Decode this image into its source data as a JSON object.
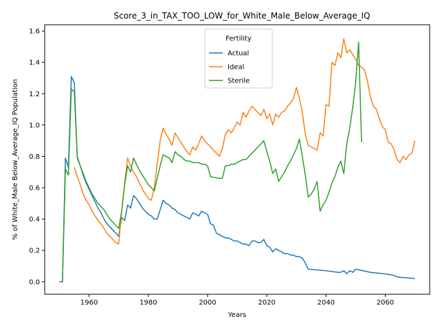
{
  "chart_data": {
    "type": "line",
    "title": "Score_3_in_TAX_TOO_LOW_for_White_Male_Below_Average_IQ",
    "xlabel": "Years",
    "ylabel": "% of White_Male Below_Average_IQ Population",
    "xlim": [
      1945,
      2075
    ],
    "ylim": [
      -0.08,
      1.64
    ],
    "xticks": [
      1960,
      1980,
      2000,
      2020,
      2040,
      2060
    ],
    "yticks": [
      0.0,
      0.2,
      0.4,
      0.6,
      0.8,
      1.0,
      1.2,
      1.4,
      1.6
    ],
    "grid": false,
    "legend": {
      "title": "Fertility",
      "placement": "upper-center"
    },
    "series": [
      {
        "name": "Actual",
        "color": "#1f77b4",
        "points": [
          [
            1950,
            0.0
          ],
          [
            1951,
            0.0
          ],
          [
            1952,
            0.79
          ],
          [
            1953,
            0.73
          ],
          [
            1954,
            1.31
          ],
          [
            1955,
            1.27
          ],
          [
            1956,
            0.79
          ],
          [
            1957,
            0.74
          ],
          [
            1958,
            0.68
          ],
          [
            1959,
            0.63
          ],
          [
            1960,
            0.59
          ],
          [
            1961,
            0.55
          ],
          [
            1962,
            0.51
          ],
          [
            1963,
            0.47
          ],
          [
            1964,
            0.44
          ],
          [
            1965,
            0.4
          ],
          [
            1966,
            0.37
          ],
          [
            1967,
            0.35
          ],
          [
            1968,
            0.33
          ],
          [
            1969,
            0.31
          ],
          [
            1970,
            0.29
          ],
          [
            1971,
            0.41
          ],
          [
            1972,
            0.39
          ],
          [
            1973,
            0.49
          ],
          [
            1974,
            0.47
          ],
          [
            1975,
            0.55
          ],
          [
            1976,
            0.53
          ],
          [
            1977,
            0.5
          ],
          [
            1978,
            0.47
          ],
          [
            1979,
            0.45
          ],
          [
            1980,
            0.43
          ],
          [
            1981,
            0.42
          ],
          [
            1982,
            0.4
          ],
          [
            1983,
            0.4
          ],
          [
            1984,
            0.46
          ],
          [
            1985,
            0.52
          ],
          [
            1986,
            0.5
          ],
          [
            1987,
            0.49
          ],
          [
            1988,
            0.47
          ],
          [
            1989,
            0.46
          ],
          [
            1990,
            0.44
          ],
          [
            1991,
            0.43
          ],
          [
            1992,
            0.42
          ],
          [
            1993,
            0.41
          ],
          [
            1994,
            0.4
          ],
          [
            1995,
            0.44
          ],
          [
            1996,
            0.43
          ],
          [
            1997,
            0.42
          ],
          [
            1998,
            0.45
          ],
          [
            1999,
            0.44
          ],
          [
            2000,
            0.43
          ],
          [
            2001,
            0.37
          ],
          [
            2002,
            0.36
          ],
          [
            2003,
            0.31
          ],
          [
            2004,
            0.3
          ],
          [
            2005,
            0.29
          ],
          [
            2006,
            0.28
          ],
          [
            2007,
            0.28
          ],
          [
            2008,
            0.27
          ],
          [
            2009,
            0.26
          ],
          [
            2010,
            0.26
          ],
          [
            2011,
            0.25
          ],
          [
            2012,
            0.24
          ],
          [
            2013,
            0.24
          ],
          [
            2014,
            0.23
          ],
          [
            2015,
            0.26
          ],
          [
            2016,
            0.26
          ],
          [
            2017,
            0.25
          ],
          [
            2018,
            0.25
          ],
          [
            2019,
            0.27
          ],
          [
            2020,
            0.23
          ],
          [
            2021,
            0.22
          ],
          [
            2022,
            0.19
          ],
          [
            2023,
            0.21
          ],
          [
            2024,
            0.2
          ],
          [
            2025,
            0.19
          ],
          [
            2026,
            0.18
          ],
          [
            2027,
            0.18
          ],
          [
            2028,
            0.17
          ],
          [
            2029,
            0.17
          ],
          [
            2030,
            0.16
          ],
          [
            2031,
            0.16
          ],
          [
            2032,
            0.15
          ],
          [
            2033,
            0.12
          ],
          [
            2034,
            0.08
          ],
          [
            2040,
            0.07
          ],
          [
            2044,
            0.06
          ],
          [
            2045,
            0.06
          ],
          [
            2046,
            0.07
          ],
          [
            2047,
            0.05
          ],
          [
            2048,
            0.07
          ],
          [
            2049,
            0.06
          ],
          [
            2050,
            0.08
          ],
          [
            2055,
            0.06
          ],
          [
            2060,
            0.05
          ],
          [
            2063,
            0.04
          ],
          [
            2064,
            0.03
          ],
          [
            2070,
            0.02
          ]
        ]
      },
      {
        "name": "Ideal",
        "color": "#ff7f0e",
        "points": [
          [
            1955,
            0.73
          ],
          [
            1956,
            0.67
          ],
          [
            1957,
            0.62
          ],
          [
            1958,
            0.56
          ],
          [
            1959,
            0.52
          ],
          [
            1960,
            0.49
          ],
          [
            1961,
            0.45
          ],
          [
            1962,
            0.42
          ],
          [
            1963,
            0.39
          ],
          [
            1964,
            0.37
          ],
          [
            1965,
            0.34
          ],
          [
            1966,
            0.31
          ],
          [
            1967,
            0.29
          ],
          [
            1968,
            0.27
          ],
          [
            1969,
            0.25
          ],
          [
            1970,
            0.24
          ],
          [
            1971,
            0.45
          ],
          [
            1972,
            0.63
          ],
          [
            1973,
            0.79
          ],
          [
            1974,
            0.74
          ],
          [
            1975,
            0.7
          ],
          [
            1976,
            0.67
          ],
          [
            1977,
            0.63
          ],
          [
            1978,
            0.59
          ],
          [
            1979,
            0.56
          ],
          [
            1980,
            0.53
          ],
          [
            1981,
            0.52
          ],
          [
            1982,
            0.6
          ],
          [
            1983,
            0.75
          ],
          [
            1984,
            0.9
          ],
          [
            1985,
            0.98
          ],
          [
            1986,
            0.94
          ],
          [
            1987,
            0.91
          ],
          [
            1988,
            0.87
          ],
          [
            1989,
            0.95
          ],
          [
            1990,
            0.92
          ],
          [
            1991,
            0.89
          ],
          [
            1992,
            0.86
          ],
          [
            1993,
            0.83
          ],
          [
            1994,
            0.81
          ],
          [
            1995,
            0.86
          ],
          [
            1996,
            0.84
          ],
          [
            1997,
            0.88
          ],
          [
            1998,
            0.93
          ],
          [
            1999,
            0.9
          ],
          [
            2000,
            0.88
          ],
          [
            2001,
            0.86
          ],
          [
            2002,
            0.84
          ],
          [
            2003,
            0.82
          ],
          [
            2004,
            0.8
          ],
          [
            2005,
            0.85
          ],
          [
            2006,
            0.94
          ],
          [
            2007,
            0.97
          ],
          [
            2008,
            0.95
          ],
          [
            2009,
            0.98
          ],
          [
            2010,
            1.02
          ],
          [
            2011,
            1.0
          ],
          [
            2012,
            1.08
          ],
          [
            2013,
            1.05
          ],
          [
            2014,
            1.09
          ],
          [
            2015,
            1.12
          ],
          [
            2016,
            1.1
          ],
          [
            2017,
            1.08
          ],
          [
            2018,
            1.06
          ],
          [
            2019,
            1.1
          ],
          [
            2020,
            1.04
          ],
          [
            2021,
            1.07
          ],
          [
            2022,
            1.0
          ],
          [
            2023,
            1.07
          ],
          [
            2024,
            1.05
          ],
          [
            2025,
            1.08
          ],
          [
            2026,
            1.09
          ],
          [
            2027,
            1.12
          ],
          [
            2028,
            1.14
          ],
          [
            2029,
            1.17
          ],
          [
            2030,
            1.24
          ],
          [
            2031,
            1.17
          ],
          [
            2032,
            1.08
          ],
          [
            2033,
            0.94
          ],
          [
            2034,
            0.87
          ],
          [
            2035,
            0.86
          ],
          [
            2036,
            0.85
          ],
          [
            2037,
            0.84
          ],
          [
            2038,
            0.95
          ],
          [
            2039,
            0.93
          ],
          [
            2040,
            1.13
          ],
          [
            2041,
            1.12
          ],
          [
            2042,
            1.4
          ],
          [
            2043,
            1.38
          ],
          [
            2044,
            1.46
          ],
          [
            2045,
            1.43
          ],
          [
            2046,
            1.55
          ],
          [
            2047,
            1.46
          ],
          [
            2048,
            1.48
          ],
          [
            2049,
            1.45
          ],
          [
            2050,
            1.42
          ],
          [
            2051,
            1.38
          ],
          [
            2052,
            1.37
          ],
          [
            2053,
            1.35
          ],
          [
            2054,
            1.28
          ],
          [
            2055,
            1.18
          ],
          [
            2056,
            1.12
          ],
          [
            2057,
            1.1
          ],
          [
            2058,
            1.04
          ],
          [
            2059,
            0.99
          ],
          [
            2060,
            0.97
          ],
          [
            2061,
            0.89
          ],
          [
            2062,
            0.88
          ],
          [
            2063,
            0.84
          ],
          [
            2064,
            0.78
          ],
          [
            2065,
            0.76
          ],
          [
            2066,
            0.8
          ],
          [
            2067,
            0.78
          ],
          [
            2068,
            0.81
          ],
          [
            2069,
            0.82
          ],
          [
            2070,
            0.9
          ]
        ]
      },
      {
        "name": "Sterile",
        "color": "#2ca02c",
        "points": [
          [
            1951,
            0.0
          ],
          [
            1952,
            0.72
          ],
          [
            1953,
            0.68
          ],
          [
            1954,
            1.23
          ],
          [
            1955,
            1.21
          ],
          [
            1956,
            0.8
          ],
          [
            1957,
            0.74
          ],
          [
            1958,
            0.69
          ],
          [
            1959,
            0.64
          ],
          [
            1960,
            0.6
          ],
          [
            1961,
            0.56
          ],
          [
            1962,
            0.53
          ],
          [
            1963,
            0.5
          ],
          [
            1964,
            0.48
          ],
          [
            1965,
            0.46
          ],
          [
            1966,
            0.43
          ],
          [
            1967,
            0.4
          ],
          [
            1968,
            0.38
          ],
          [
            1969,
            0.36
          ],
          [
            1970,
            0.34
          ],
          [
            1971,
            0.45
          ],
          [
            1972,
            0.62
          ],
          [
            1973,
            0.74
          ],
          [
            1974,
            0.7
          ],
          [
            1975,
            0.79
          ],
          [
            1976,
            0.75
          ],
          [
            1977,
            0.71
          ],
          [
            1978,
            0.68
          ],
          [
            1979,
            0.65
          ],
          [
            1980,
            0.62
          ],
          [
            1981,
            0.6
          ],
          [
            1982,
            0.58
          ],
          [
            1983,
            0.66
          ],
          [
            1984,
            0.74
          ],
          [
            1985,
            0.81
          ],
          [
            1986,
            0.8
          ],
          [
            1987,
            0.79
          ],
          [
            1988,
            0.76
          ],
          [
            1989,
            0.83
          ],
          [
            1990,
            0.81
          ],
          [
            1991,
            0.8
          ],
          [
            1992,
            0.78
          ],
          [
            1993,
            0.77
          ],
          [
            1994,
            0.77
          ],
          [
            1995,
            0.76
          ],
          [
            1996,
            0.76
          ],
          [
            1997,
            0.76
          ],
          [
            1998,
            0.75
          ],
          [
            1999,
            0.75
          ],
          [
            2000,
            0.74
          ],
          [
            2001,
            0.67
          ],
          [
            2004,
            0.66
          ],
          [
            2005,
            0.66
          ],
          [
            2006,
            0.74
          ],
          [
            2007,
            0.74
          ],
          [
            2008,
            0.75
          ],
          [
            2009,
            0.75
          ],
          [
            2010,
            0.76
          ],
          [
            2011,
            0.77
          ],
          [
            2012,
            0.78
          ],
          [
            2013,
            0.78
          ],
          [
            2014,
            0.8
          ],
          [
            2015,
            0.82
          ],
          [
            2016,
            0.84
          ],
          [
            2017,
            0.86
          ],
          [
            2018,
            0.88
          ],
          [
            2019,
            0.9
          ],
          [
            2020,
            0.83
          ],
          [
            2021,
            0.77
          ],
          [
            2022,
            0.69
          ],
          [
            2023,
            0.72
          ],
          [
            2024,
            0.64
          ],
          [
            2025,
            0.67
          ],
          [
            2026,
            0.7
          ],
          [
            2027,
            0.74
          ],
          [
            2028,
            0.77
          ],
          [
            2029,
            0.81
          ],
          [
            2030,
            0.85
          ],
          [
            2031,
            0.91
          ],
          [
            2032,
            0.8
          ],
          [
            2033,
            0.68
          ],
          [
            2034,
            0.54
          ],
          [
            2035,
            0.56
          ],
          [
            2036,
            0.59
          ],
          [
            2037,
            0.64
          ],
          [
            2038,
            0.45
          ],
          [
            2039,
            0.49
          ],
          [
            2040,
            0.52
          ],
          [
            2041,
            0.57
          ],
          [
            2042,
            0.63
          ],
          [
            2043,
            0.67
          ],
          [
            2044,
            0.73
          ],
          [
            2045,
            0.77
          ],
          [
            2046,
            0.69
          ],
          [
            2047,
            0.88
          ],
          [
            2048,
            0.98
          ],
          [
            2049,
            1.11
          ],
          [
            2050,
            1.27
          ],
          [
            2051,
            1.53
          ],
          [
            2052,
            0.89
          ]
        ]
      }
    ]
  }
}
